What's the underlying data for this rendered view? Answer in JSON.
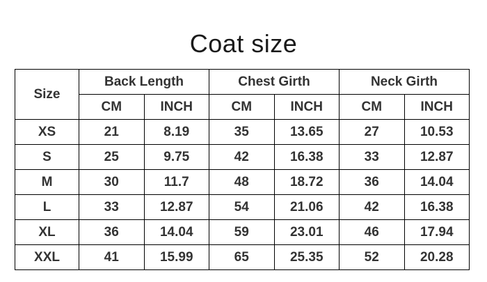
{
  "title": "Coat size",
  "table": {
    "corner_header": "Size",
    "group_headers": [
      "Back Length",
      "Chest Girth",
      "Neck Girth"
    ],
    "unit_headers": [
      "CM",
      "INCH",
      "CM",
      "INCH",
      "CM",
      "INCH"
    ],
    "rows": [
      {
        "size": "XS",
        "values": [
          "21",
          "8.19",
          "35",
          "13.65",
          "27",
          "10.53"
        ]
      },
      {
        "size": "S",
        "values": [
          "25",
          "9.75",
          "42",
          "16.38",
          "33",
          "12.87"
        ]
      },
      {
        "size": "M",
        "values": [
          "30",
          "11.7",
          "48",
          "18.72",
          "36",
          "14.04"
        ]
      },
      {
        "size": "L",
        "values": [
          "33",
          "12.87",
          "54",
          "21.06",
          "42",
          "16.38"
        ]
      },
      {
        "size": "XL",
        "values": [
          "36",
          "14.04",
          "59",
          "23.01",
          "46",
          "17.94"
        ]
      },
      {
        "size": "XXL",
        "values": [
          "41",
          "15.99",
          "65",
          "25.35",
          "52",
          "20.28"
        ]
      }
    ]
  },
  "colors": {
    "background": "#ffffff",
    "border": "#000000",
    "table_text": "#333333",
    "title_text": "#1a1a1a"
  },
  "chart_data": {
    "type": "table",
    "title": "Coat size",
    "columns": [
      "Size",
      "Back Length CM",
      "Back Length INCH",
      "Chest Girth CM",
      "Chest Girth INCH",
      "Neck Girth CM",
      "Neck Girth INCH"
    ],
    "rows": [
      [
        "XS",
        21,
        8.19,
        35,
        13.65,
        27,
        10.53
      ],
      [
        "S",
        25,
        9.75,
        42,
        16.38,
        33,
        12.87
      ],
      [
        "M",
        30,
        11.7,
        48,
        18.72,
        36,
        14.04
      ],
      [
        "L",
        33,
        12.87,
        54,
        21.06,
        42,
        16.38
      ],
      [
        "XL",
        36,
        14.04,
        59,
        23.01,
        46,
        17.94
      ],
      [
        "XXL",
        41,
        15.99,
        65,
        25.35,
        52,
        20.28
      ]
    ]
  }
}
